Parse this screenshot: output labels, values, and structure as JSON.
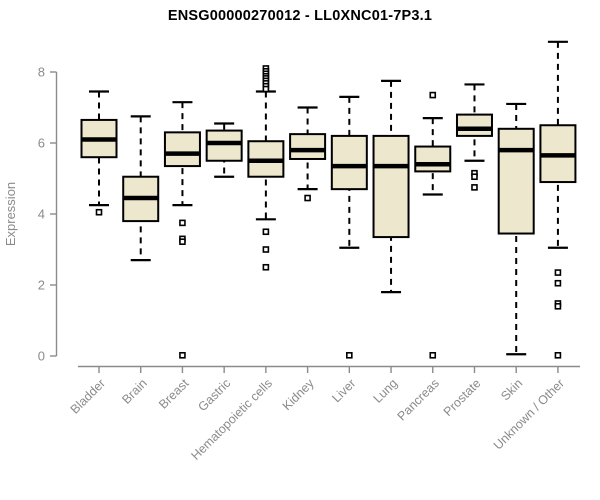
{
  "title": "ENSG00000270012 - LL0XNC01-7P3.1",
  "chart_data": {
    "type": "boxplot",
    "title": "ENSG00000270012 - LL0XNC01-7P3.1",
    "xlabel": "",
    "ylabel": "Expression",
    "ylim": [
      0,
      8
    ],
    "yticks": [
      0,
      2,
      4,
      6,
      8
    ],
    "grid": false,
    "legend": "none",
    "categories": [
      "Bladder",
      "Brain",
      "Breast",
      "Gastric",
      "Hematopoietic cells",
      "Kidney",
      "Liver",
      "Lung",
      "Pancreas",
      "Prostate",
      "Skin",
      "Unknown / Other"
    ],
    "series": [
      {
        "name": "Bladder",
        "low": 4.25,
        "q1": 5.6,
        "median": 6.1,
        "q3": 6.65,
        "high": 7.45,
        "outliers": [
          4.05
        ]
      },
      {
        "name": "Brain",
        "low": 2.7,
        "q1": 3.8,
        "median": 4.45,
        "q3": 5.05,
        "high": 6.75,
        "outliers": []
      },
      {
        "name": "Breast",
        "low": 4.25,
        "q1": 5.35,
        "median": 5.7,
        "q3": 6.3,
        "high": 7.15,
        "outliers": [
          3.75,
          3.3,
          3.22,
          0.02
        ]
      },
      {
        "name": "Gastric",
        "low": 5.05,
        "q1": 5.5,
        "median": 6.0,
        "q3": 6.35,
        "high": 6.55,
        "outliers": []
      },
      {
        "name": "Hematopoietic cells",
        "low": 3.85,
        "q1": 5.05,
        "median": 5.5,
        "q3": 6.05,
        "high": 7.45,
        "outliers": [
          8.1,
          8.02,
          7.95,
          7.88,
          7.82,
          7.75,
          7.68,
          7.6,
          7.52,
          3.5,
          3.0,
          2.5
        ]
      },
      {
        "name": "Kidney",
        "low": 4.7,
        "q1": 5.55,
        "median": 5.8,
        "q3": 6.25,
        "high": 7.0,
        "outliers": [
          4.45
        ]
      },
      {
        "name": "Liver",
        "low": 3.05,
        "q1": 4.7,
        "median": 5.35,
        "q3": 6.2,
        "high": 7.3,
        "outliers": [
          0.02
        ]
      },
      {
        "name": "Lung",
        "low": 1.8,
        "q1": 3.35,
        "median": 5.35,
        "q3": 6.2,
        "high": 7.75,
        "outliers": []
      },
      {
        "name": "Pancreas",
        "low": 4.55,
        "q1": 5.2,
        "median": 5.4,
        "q3": 5.9,
        "high": 6.7,
        "outliers": [
          7.35,
          0.02
        ]
      },
      {
        "name": "Prostate",
        "low": 5.5,
        "q1": 6.2,
        "median": 6.4,
        "q3": 6.8,
        "high": 7.65,
        "outliers": [
          5.15,
          5.05,
          4.75
        ]
      },
      {
        "name": "Skin",
        "low": 0.05,
        "q1": 3.45,
        "median": 5.8,
        "q3": 6.4,
        "high": 7.1,
        "outliers": []
      },
      {
        "name": "Unknown / Other",
        "low": 3.05,
        "q1": 4.9,
        "median": 5.65,
        "q3": 6.5,
        "high": 8.85,
        "outliers": [
          2.35,
          2.05,
          1.48,
          1.4,
          0.02
        ]
      }
    ]
  },
  "colors": {
    "box_fill": "#ede8cd",
    "box_border": "#000000",
    "median": "#000000",
    "whisker": "#000000",
    "outlier_fill": "#ffffff",
    "outlier_border": "#000000",
    "axis": "#8b8b8b",
    "tick_label": "#8b8b8b",
    "title": "#000000"
  }
}
